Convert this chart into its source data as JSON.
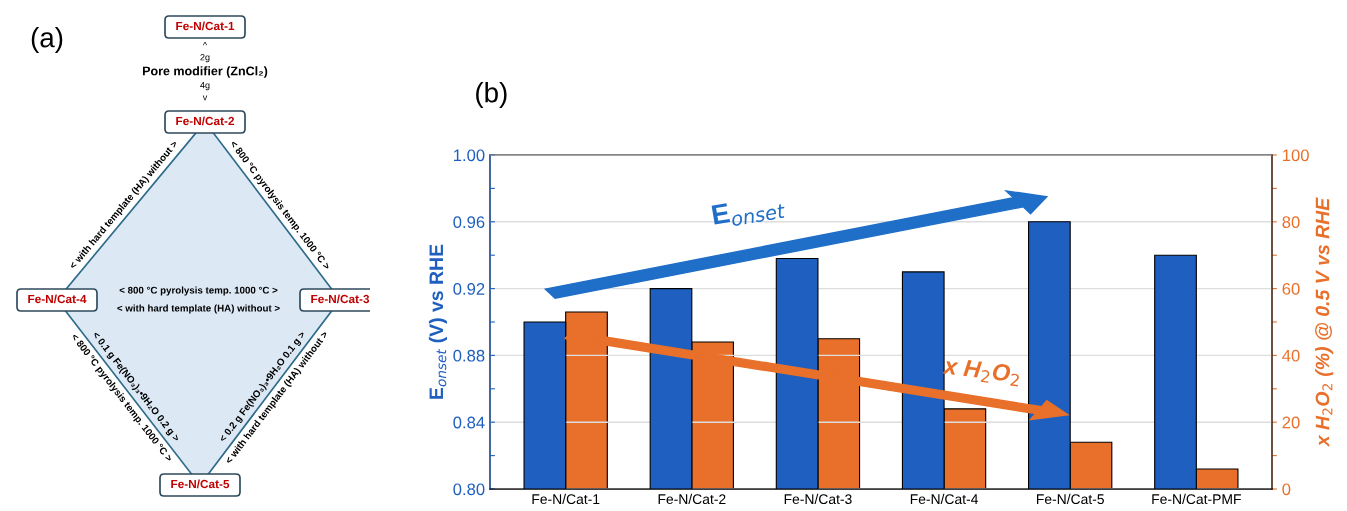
{
  "chart_data": [
    {
      "type": "other",
      "title": "(a)",
      "categories": [
        "Fe-N/Cat-1",
        "Fe-N/Cat-2",
        "Fe-N/Cat-3",
        "Fe-N/Cat-4",
        "Fe-N/Cat-5"
      ],
      "annotations": [
        "^",
        "2g",
        "Pore modifier (ZnCl₂)",
        "4g",
        "v",
        "< with hard template (HA) without >",
        "< 800 °C pyrolysis temp. 1000 °C >",
        "< 800 °C pyrolysis temp. 1000 °C >",
        "< with hard template (HA) without >",
        "< 0.1 g Fe(NO₃)₃•9H₂O 0.2 g >",
        "< 800 °C pyrolysis temp. 1000 °C >",
        "< 0.2 g Fe(NO₃)₃•9H₂O 0.1 g >",
        "< with hard template (HA) without >"
      ]
    },
    {
      "type": "bar",
      "title": "(b)",
      "categories": [
        "Fe-N/Cat-1",
        "Fe-N/Cat-2",
        "Fe-N/Cat-3",
        "Fe-N/Cat-4",
        "Fe-N/Cat-5",
        "Fe-N/Cat-PMF"
      ],
      "series": [
        {
          "color": "#1f5fbf",
          "values": [
            0.9,
            0.92,
            0.938,
            0.93,
            0.96,
            0.94
          ]
        },
        {
          "color": "#e8702a",
          "axis": "y2",
          "values": [
            53,
            44,
            45,
            24,
            14,
            6
          ]
        }
      ],
      "ylabel": "E$_{onset}$ (V) vs RHE",
      "y2label": "x H$_{2}$O$_{2}$ (%) @ 0.5 V vs RHE",
      "ylim": [
        0.8,
        1.0
      ],
      "yticks": [
        {
          "value": 0.8,
          "label": "0.80"
        },
        {
          "value": 0.82,
          "label": null
        },
        {
          "value": 0.84,
          "label": "0.84"
        },
        {
          "value": 0.86,
          "label": null
        },
        {
          "value": 0.88,
          "label": "0.88"
        },
        {
          "value": 0.9,
          "label": null
        },
        {
          "value": 0.92,
          "label": "0.92"
        },
        {
          "value": 0.94,
          "label": null
        },
        {
          "value": 0.96,
          "label": "0.96"
        },
        {
          "value": 0.98,
          "label": null
        },
        {
          "value": 1.0,
          "label": "1.00"
        }
      ],
      "y2lim": [
        0,
        100
      ],
      "y2ticks": [
        0,
        {
          "value": 10,
          "label": null
        },
        20,
        {
          "value": 30,
          "label": null
        },
        40,
        {
          "value": 50,
          "label": null
        },
        60,
        {
          "value": 70,
          "label": null
        },
        80,
        {
          "value": 90,
          "label": null
        },
        100
      ],
      "grid": "y",
      "annotations": [
        "E$_{onset}$",
        "x H$_{2}$O$_{2}$"
      ]
    }
  ]
}
